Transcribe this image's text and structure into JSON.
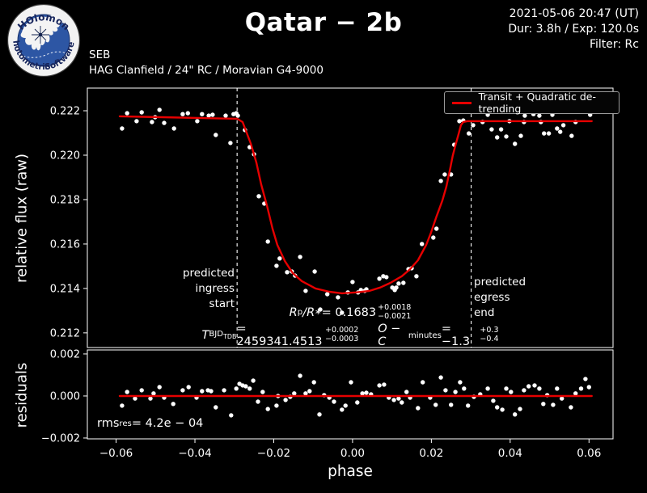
{
  "header": {
    "title": "Qatar − 2b",
    "datetime": "2021-05-06 20:47 (UT)",
    "duration_exposure": "Dur: 3.8h / Exp: 120.0s",
    "filter": "Filter: Rc",
    "observer_code": "SEB",
    "site_equipment": "HAG Clanfield / 24\" RC / Moravian G4-9000",
    "logo": {
      "arc_top": "HOlomon",
      "arc_bottom_left": "Photometric",
      "arc_bottom_right": "Software"
    }
  },
  "legend": {
    "label": "Transit + Quadratic de-trending"
  },
  "annotations": {
    "ingress": "predicted\ningress\nstart",
    "egress": "predicted\negress\nend",
    "rp": {
      "var1": "R",
      "sub1": "p",
      "slash": "/",
      "var2": "R",
      "sub2": "∗",
      "eq": " = 0.1683",
      "plus": "+0.0018",
      "minus": "−0.0021"
    },
    "t0": {
      "var": "T",
      "sub": "BJD",
      "subsub": "TDB",
      "eq": " = 2459341.4513",
      "plus": "+0.0002",
      "minus": "−0.0003"
    },
    "oc": {
      "var": "O − C",
      "sub": "minutes",
      "eq": " = −1.3",
      "plus": "+0.3",
      "minus": "−0.4"
    },
    "rms": {
      "var": "rms",
      "sub": "res",
      "eq": " = 4.2e − 04"
    }
  },
  "colors": {
    "background": "#000000",
    "foreground": "#ffffff",
    "fit_line": "#e60000",
    "logo_blue": "#2d56a4",
    "logo_text": "#17255c"
  },
  "chart_data": {
    "type": "scatter",
    "title": "Qatar − 2b",
    "xlabel": "phase",
    "x_axis": {
      "min": -0.0673,
      "max": 0.0661,
      "ticks": [
        -0.06,
        -0.04,
        -0.02,
        0.0,
        0.02,
        0.04,
        0.06
      ],
      "tick_labels": [
        "−0.06",
        "−0.04",
        "−0.02",
        "0.00",
        "0.02",
        "0.04",
        "0.06"
      ],
      "label": "phase"
    },
    "panels": [
      {
        "name": "light-curve",
        "ylabel": "relative flux (raw)",
        "y_axis": {
          "min": 0.21134,
          "max": 0.22302,
          "ticks": [
            0.212,
            0.214,
            0.216,
            0.218,
            0.22,
            0.222
          ],
          "tick_labels": [
            "0.212",
            "0.214",
            "0.216",
            "0.218",
            "0.220",
            "0.222"
          ]
        },
        "vlines": [
          -0.0293,
          0.0301
        ],
        "legend_label": "Transit + Quadratic de-trending",
        "points": [
          [
            -0.0585,
            0.2212
          ],
          [
            -0.0572,
            0.22189
          ],
          [
            -0.0548,
            0.22153
          ],
          [
            -0.0535,
            0.22193
          ],
          [
            -0.0509,
            0.22149
          ],
          [
            -0.0501,
            0.22171
          ],
          [
            -0.049,
            0.22204
          ],
          [
            -0.0478,
            0.22145
          ],
          [
            -0.0453,
            0.2212
          ],
          [
            -0.0431,
            0.22185
          ],
          [
            -0.0418,
            0.22189
          ],
          [
            -0.0394,
            0.22153
          ],
          [
            -0.0382,
            0.22185
          ],
          [
            -0.0365,
            0.22178
          ],
          [
            -0.0355,
            0.22182
          ],
          [
            -0.0347,
            0.22091
          ],
          [
            -0.0322,
            0.22178
          ],
          [
            -0.031,
            0.22055
          ],
          [
            -0.0302,
            0.22185
          ],
          [
            -0.0295,
            0.22189
          ],
          [
            -0.0291,
            0.22178
          ],
          [
            -0.0273,
            0.22113
          ],
          [
            -0.0261,
            0.22036
          ],
          [
            -0.025,
            0.22004
          ],
          [
            -0.0238,
            0.21815
          ],
          [
            -0.0224,
            0.21782
          ],
          [
            -0.0215,
            0.21611
          ],
          [
            -0.0193,
            0.21502
          ],
          [
            -0.0185,
            0.21535
          ],
          [
            -0.0166,
            0.21473
          ],
          [
            -0.0154,
            0.21476
          ],
          [
            -0.0146,
            0.21458
          ],
          [
            -0.0133,
            0.21542
          ],
          [
            -0.0119,
            0.21389
          ],
          [
            -0.0096,
            0.21476
          ],
          [
            -0.0082,
            0.21305
          ],
          [
            -0.0064,
            0.21374
          ],
          [
            -0.0037,
            0.2136
          ],
          [
            -0.0027,
            0.21291
          ],
          [
            -0.0012,
            0.21382
          ],
          [
            0.0,
            0.21429
          ],
          [
            0.0014,
            0.21382
          ],
          [
            0.0021,
            0.21393
          ],
          [
            0.0031,
            0.21389
          ],
          [
            0.0035,
            0.21396
          ],
          [
            0.0068,
            0.21444
          ],
          [
            0.0078,
            0.21455
          ],
          [
            0.0086,
            0.21451
          ],
          [
            0.0101,
            0.21404
          ],
          [
            0.0107,
            0.21393
          ],
          [
            0.0111,
            0.21404
          ],
          [
            0.0117,
            0.21422
          ],
          [
            0.0129,
            0.21425
          ],
          [
            0.0142,
            0.21487
          ],
          [
            0.015,
            0.21491
          ],
          [
            0.0162,
            0.21455
          ],
          [
            0.0176,
            0.216
          ],
          [
            0.0205,
            0.21629
          ],
          [
            0.0213,
            0.21669
          ],
          [
            0.0224,
            0.21884
          ],
          [
            0.0234,
            0.21913
          ],
          [
            0.025,
            0.21913
          ],
          [
            0.0258,
            0.22047
          ],
          [
            0.0271,
            0.22153
          ],
          [
            0.0281,
            0.22156
          ],
          [
            0.0295,
            0.22098
          ],
          [
            0.0306,
            0.22135
          ],
          [
            0.033,
            0.22149
          ],
          [
            0.0343,
            0.22182
          ],
          [
            0.0353,
            0.22116
          ],
          [
            0.0367,
            0.2208
          ],
          [
            0.0377,
            0.22116
          ],
          [
            0.039,
            0.22084
          ],
          [
            0.0398,
            0.22153
          ],
          [
            0.0412,
            0.22051
          ],
          [
            0.0427,
            0.22087
          ],
          [
            0.0435,
            0.22149
          ],
          [
            0.0437,
            0.22178
          ],
          [
            0.0459,
            0.22185
          ],
          [
            0.0474,
            0.22178
          ],
          [
            0.0478,
            0.22149
          ],
          [
            0.0486,
            0.22098
          ],
          [
            0.0498,
            0.22098
          ],
          [
            0.0507,
            0.22182
          ],
          [
            0.0519,
            0.2212
          ],
          [
            0.0527,
            0.22105
          ],
          [
            0.0535,
            0.22135
          ],
          [
            0.0556,
            0.22087
          ],
          [
            0.0566,
            0.22149
          ],
          [
            0.0591,
            0.22222
          ],
          [
            0.0603,
            0.22182
          ]
        ],
        "model": [
          [
            -0.0591,
            0.22175
          ],
          [
            -0.0484,
            0.22171
          ],
          [
            -0.0382,
            0.22167
          ],
          [
            -0.0293,
            0.22164
          ],
          [
            -0.0279,
            0.22149
          ],
          [
            -0.0258,
            0.22051
          ],
          [
            -0.0244,
            0.21967
          ],
          [
            -0.0232,
            0.21869
          ],
          [
            -0.0217,
            0.21771
          ],
          [
            -0.0203,
            0.21669
          ],
          [
            -0.0191,
            0.21596
          ],
          [
            -0.0172,
            0.21524
          ],
          [
            -0.0152,
            0.21469
          ],
          [
            -0.0129,
            0.21433
          ],
          [
            -0.0094,
            0.214
          ],
          [
            -0.0059,
            0.21385
          ],
          [
            -0.0027,
            0.21378
          ],
          [
            0.0008,
            0.21382
          ],
          [
            0.0043,
            0.21389
          ],
          [
            0.007,
            0.21404
          ],
          [
            0.0096,
            0.21425
          ],
          [
            0.0125,
            0.21455
          ],
          [
            0.0146,
            0.21487
          ],
          [
            0.0166,
            0.21527
          ],
          [
            0.0187,
            0.21596
          ],
          [
            0.0199,
            0.21651
          ],
          [
            0.0213,
            0.21724
          ],
          [
            0.0228,
            0.21796
          ],
          [
            0.0238,
            0.21858
          ],
          [
            0.0248,
            0.21942
          ],
          [
            0.0254,
            0.21996
          ],
          [
            0.0261,
            0.22044
          ],
          [
            0.0269,
            0.22095
          ],
          [
            0.0275,
            0.22135
          ],
          [
            0.0281,
            0.22149
          ],
          [
            0.0291,
            0.22153
          ],
          [
            0.0336,
            0.22153
          ],
          [
            0.0439,
            0.22153
          ],
          [
            0.0541,
            0.22153
          ],
          [
            0.0607,
            0.22153
          ]
        ]
      },
      {
        "name": "residuals",
        "ylabel": "residuals",
        "y_axis": {
          "min": -0.00204,
          "max": 0.00219,
          "ticks": [
            -0.002,
            0.0,
            0.002
          ],
          "tick_labels": [
            "−0.002",
            "0.000",
            "0.002"
          ]
        },
        "points": [
          [
            -0.0585,
            -0.00046
          ],
          [
            -0.0572,
            0.00019
          ],
          [
            -0.0552,
            -0.00012
          ],
          [
            -0.0535,
            0.00027
          ],
          [
            -0.0513,
            -0.00012
          ],
          [
            -0.0505,
            0.00012
          ],
          [
            -0.049,
            0.00042
          ],
          [
            -0.0478,
            -8e-05
          ],
          [
            -0.0455,
            -0.00038
          ],
          [
            -0.0431,
            0.00027
          ],
          [
            -0.0416,
            0.00042
          ],
          [
            -0.0396,
            -8e-05
          ],
          [
            -0.0382,
            0.00023
          ],
          [
            -0.0367,
            0.00027
          ],
          [
            -0.0359,
            0.00023
          ],
          [
            -0.0347,
            -0.00054
          ],
          [
            -0.0326,
            0.00027
          ],
          [
            -0.0308,
            -0.00092
          ],
          [
            -0.0295,
            0.00035
          ],
          [
            -0.0287,
            0.00058
          ],
          [
            -0.0279,
            0.0005
          ],
          [
            -0.0271,
            0.00046
          ],
          [
            -0.0261,
            0.00035
          ],
          [
            -0.0252,
            0.00073
          ],
          [
            -0.024,
            -0.00027
          ],
          [
            -0.0228,
            0.00019
          ],
          [
            -0.0215,
            -0.00062
          ],
          [
            -0.0193,
            -0.00046
          ],
          [
            -0.0189,
            0.0
          ],
          [
            -0.017,
            -0.00019
          ],
          [
            -0.0158,
            -4e-05
          ],
          [
            -0.0148,
            0.00012
          ],
          [
            -0.0133,
            0.00096
          ],
          [
            -0.0119,
            0.00012
          ],
          [
            -0.0109,
            0.00023
          ],
          [
            -0.0098,
            0.00065
          ],
          [
            -0.0084,
            -0.00088
          ],
          [
            -0.0072,
            4e-05
          ],
          [
            -0.0059,
            -8e-05
          ],
          [
            -0.0047,
            -0.00027
          ],
          [
            -0.0027,
            -0.00065
          ],
          [
            -0.0018,
            -0.00046
          ],
          [
            -0.0004,
            0.00065
          ],
          [
            0.0012,
            -0.00031
          ],
          [
            0.0025,
            0.00012
          ],
          [
            0.0035,
            0.00015
          ],
          [
            0.0047,
            8e-05
          ],
          [
            0.0068,
            0.0005
          ],
          [
            0.008,
            0.00054
          ],
          [
            0.0092,
            -8e-05
          ],
          [
            0.0105,
            -0.00019
          ],
          [
            0.0117,
            -0.00012
          ],
          [
            0.0125,
            -0.00031
          ],
          [
            0.0137,
            0.00019
          ],
          [
            0.0146,
            -8e-05
          ],
          [
            0.0166,
            -0.00058
          ],
          [
            0.0178,
            0.00065
          ],
          [
            0.0197,
            -8e-05
          ],
          [
            0.0211,
            -0.00042
          ],
          [
            0.0224,
            0.00088
          ],
          [
            0.0236,
            0.00027
          ],
          [
            0.025,
            -0.00042
          ],
          [
            0.0261,
            0.00019
          ],
          [
            0.0273,
            0.00065
          ],
          [
            0.0283,
            0.00035
          ],
          [
            0.0293,
            -0.00046
          ],
          [
            0.0308,
            -4e-05
          ],
          [
            0.0324,
            8e-05
          ],
          [
            0.0343,
            0.00035
          ],
          [
            0.0357,
            -0.00023
          ],
          [
            0.0367,
            -0.00054
          ],
          [
            0.038,
            -0.00065
          ],
          [
            0.039,
            0.00035
          ],
          [
            0.0402,
            0.00019
          ],
          [
            0.0412,
            -0.00088
          ],
          [
            0.0425,
            -0.00062
          ],
          [
            0.0435,
            0.00027
          ],
          [
            0.0447,
            0.00046
          ],
          [
            0.0462,
            0.0005
          ],
          [
            0.0474,
            0.00035
          ],
          [
            0.0484,
            -0.00038
          ],
          [
            0.0494,
            4e-05
          ],
          [
            0.0509,
            -0.00042
          ],
          [
            0.0519,
            0.00035
          ],
          [
            0.0531,
            -0.00012
          ],
          [
            0.0554,
            -0.00054
          ],
          [
            0.0566,
            0.00012
          ],
          [
            0.058,
            0.00035
          ],
          [
            0.0591,
            0.00081
          ],
          [
            0.06,
            0.00042
          ]
        ],
        "model": [
          [
            -0.0591,
            0.0
          ],
          [
            0.0607,
            0.0
          ]
        ]
      }
    ]
  }
}
